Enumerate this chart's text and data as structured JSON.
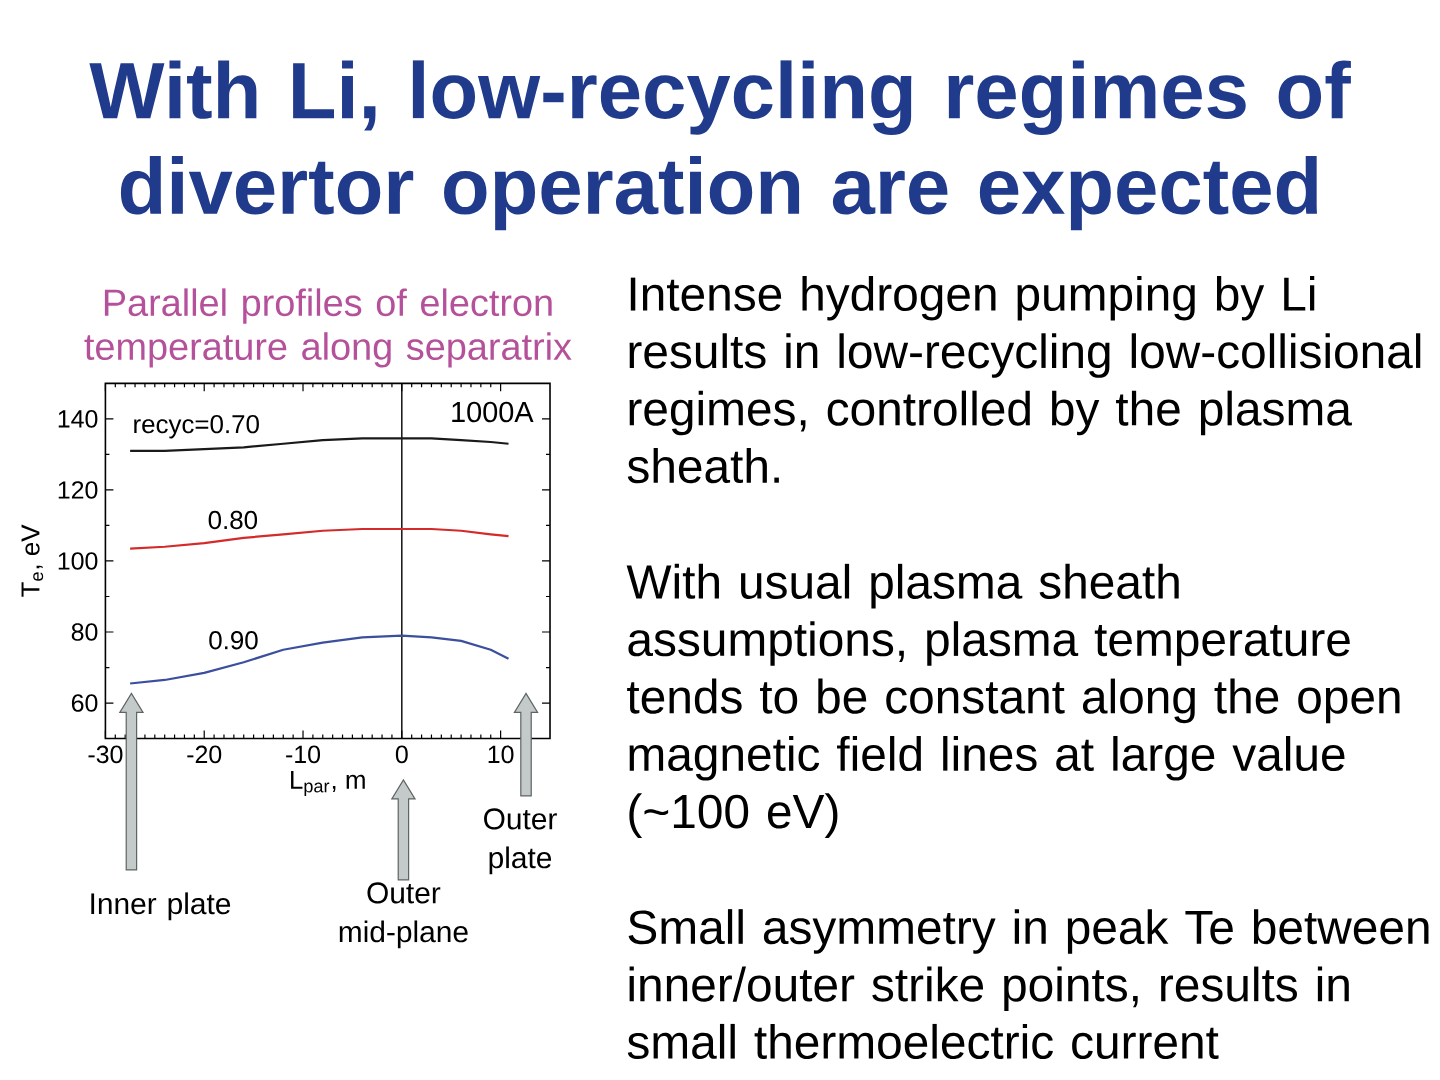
{
  "chart_data": {
    "type": "line",
    "title": "With Li, low-recycling regimes of divertor operation are expected",
    "subtitle": "Parallel profiles of electron temperature along separatrix",
    "xlabel": "L$_{par}$, m",
    "ylabel": "T$_{e}$, eV",
    "x": [
      -27.5,
      -24,
      -20,
      -16,
      -12,
      -8,
      -4,
      0,
      3,
      6,
      9,
      10.8
    ],
    "series": [
      {
        "name": "recyc=0.70",
        "color": "#1a1a1a",
        "values": [
          131,
          131,
          131.5,
          132,
          133,
          134,
          134.5,
          134.5,
          134.5,
          134,
          133.5,
          133
        ]
      },
      {
        "name": "0.80",
        "color": "#d42a2a",
        "values": [
          103.5,
          104,
          105,
          106.5,
          107.5,
          108.5,
          109,
          109,
          109,
          108.5,
          107.5,
          107
        ]
      },
      {
        "name": "0.90",
        "color": "#3b4f9e",
        "values": [
          65.5,
          66.5,
          68.5,
          71.5,
          75,
          77,
          78.5,
          79,
          78.5,
          77.5,
          75,
          72.5
        ]
      }
    ],
    "xlim": [
      -30,
      15
    ],
    "xticks": [
      -30,
      -20,
      -10,
      0,
      10
    ],
    "ylim": [
      50,
      150
    ],
    "yticks": [
      60,
      80,
      100,
      120,
      140
    ],
    "ref_lines": [
      {
        "axis": "x",
        "value": 0,
        "color": "#000000"
      }
    ],
    "annotations": [
      "1000A",
      "Intense hydrogen pumping by Li results in low-recycling low-collisional regimes, controlled by the plasma sheath.",
      "With usual plasma sheath assumptions, plasma temperature tends to be constant along the open magnetic field lines at large value (~100 eV)",
      "Small asymmetry in peak Te between inner/outer strike points, results in small thermoelectric current",
      "Inner plate",
      "Outer mid-plane",
      "Outer plate"
    ]
  }
}
